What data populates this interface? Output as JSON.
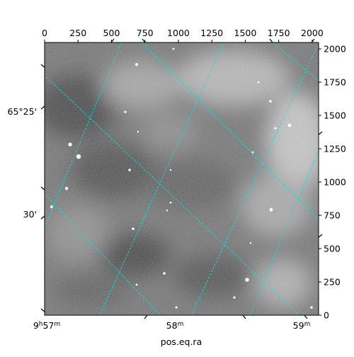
{
  "chart_data": {
    "type": "image",
    "xlabel": "pos.eq.ra",
    "ylabel": "",
    "pixel_axes": {
      "x": {
        "ticks": [
          0,
          250,
          500,
          750,
          1000,
          1250,
          1500,
          1750,
          2000
        ],
        "range": [
          0,
          2048
        ]
      },
      "y": {
        "ticks": [
          0,
          250,
          500,
          750,
          1000,
          1250,
          1500,
          1750,
          2000
        ],
        "range": [
          0,
          2048
        ]
      }
    },
    "world_axes": {
      "ra_ticks": [
        {
          "label": "9h57m",
          "h": "9",
          "m": "57"
        },
        {
          "label": "58m",
          "m": "58"
        },
        {
          "label": "59m",
          "m": "59"
        }
      ],
      "dec_ticks": [
        {
          "label": "65°25'"
        },
        {
          "label": "30'"
        }
      ]
    },
    "grid": true,
    "grid_color": "#00e5e5",
    "image_colormap": "grayscale"
  }
}
